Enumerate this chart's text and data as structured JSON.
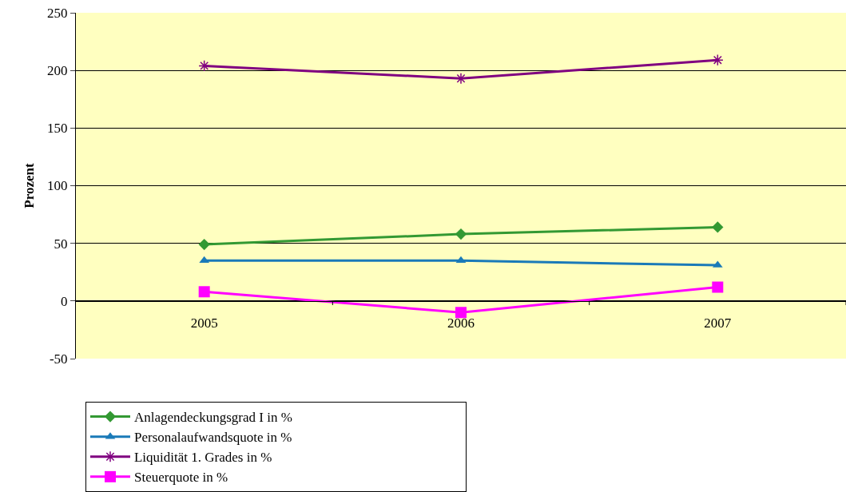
{
  "chart_data": {
    "type": "line",
    "ylabel": "Prozent",
    "categories": [
      "2005",
      "2006",
      "2007"
    ],
    "ylim": [
      -50,
      250
    ],
    "yticks": [
      -50,
      0,
      50,
      100,
      150,
      200,
      250
    ],
    "grid": "y",
    "legend": "bottom",
    "series": [
      {
        "name": "Anlagendeckungsgrad I in %",
        "color": "#339933",
        "marker": "diamond",
        "values": [
          49,
          58,
          64
        ]
      },
      {
        "name": "Personalaufwandsquote in %",
        "color": "#1a7ab8",
        "marker": "triangle",
        "values": [
          35,
          35,
          31
        ]
      },
      {
        "name": "Liquidität 1. Grades in %",
        "color": "#800080",
        "marker": "cross",
        "values": [
          204,
          193,
          209
        ]
      },
      {
        "name": "Steuerquote in %",
        "color": "#ff00ff",
        "marker": "square",
        "values": [
          8,
          -10,
          12
        ]
      }
    ]
  }
}
